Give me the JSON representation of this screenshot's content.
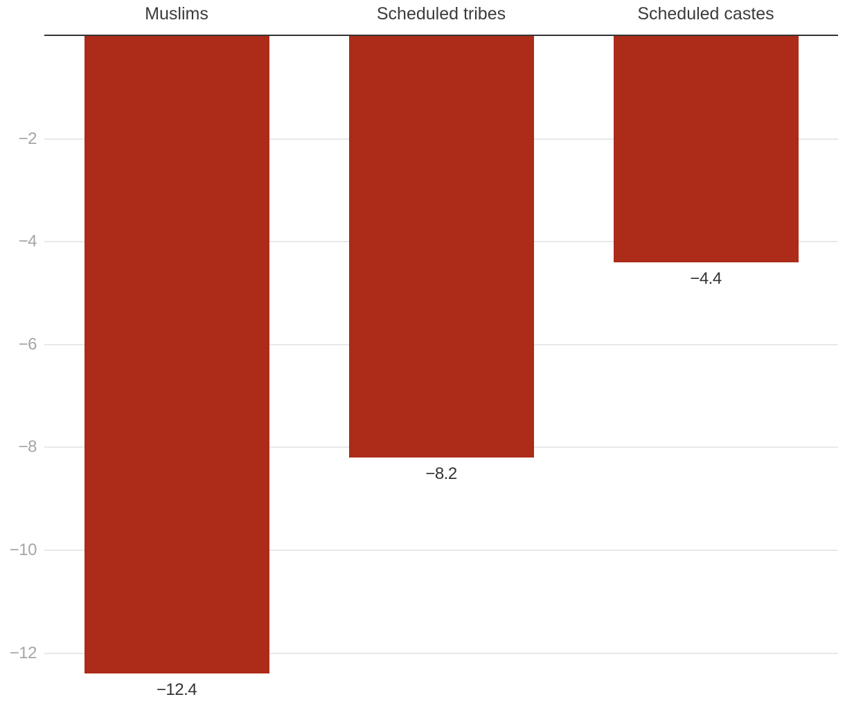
{
  "chart_data": {
    "type": "bar",
    "orientation": "vertical-negative",
    "categories": [
      "Muslims",
      "Scheduled tribes",
      "Scheduled castes"
    ],
    "values": [
      -12.4,
      -8.2,
      -4.4
    ],
    "value_labels": [
      "−12.4",
      "−8.2",
      "−4.4"
    ],
    "yticks": [
      {
        "value": -2,
        "label": "−2"
      },
      {
        "value": -4,
        "label": "−4"
      },
      {
        "value": -6,
        "label": "−6"
      },
      {
        "value": -8,
        "label": "−8"
      },
      {
        "value": -10,
        "label": "−10"
      },
      {
        "value": -12,
        "label": "−12"
      }
    ],
    "ylim": [
      0,
      -12.4
    ],
    "baseline_value": 0,
    "grid": true,
    "legend": "none",
    "colors": {
      "bar": "#ac2b19",
      "baseline": "#333333",
      "gridline": "#e8e8e8",
      "tick_label": "#a5a5a5",
      "category_label": "#3b3b3b",
      "value_label": "#333333",
      "background": "#ffffff"
    }
  }
}
